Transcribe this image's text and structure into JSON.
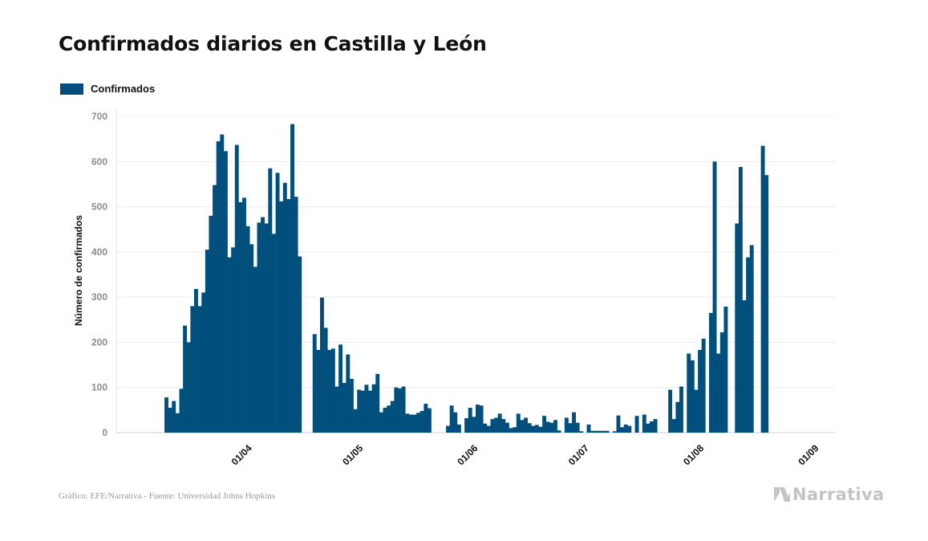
{
  "chart_data": {
    "type": "bar",
    "title": "Confirmados diarios en Castilla y León",
    "ylabel": "Número de confirmados",
    "xlabel": "",
    "ylim": [
      0,
      700
    ],
    "yticks": [
      0,
      100,
      200,
      300,
      400,
      500,
      600,
      700
    ],
    "x_axis": "date",
    "xticks": [
      "01/04",
      "01/05",
      "01/06",
      "01/07",
      "01/08",
      "01/09"
    ],
    "xtick_dates": [
      "2020-04-01",
      "2020-05-01",
      "2020-06-01",
      "2020-07-01",
      "2020-08-01",
      "2020-09-01"
    ],
    "grid": true,
    "legend_position": "top-left",
    "series": [
      {
        "name": "Confirmados",
        "color": "#004f7c",
        "points": [
          [
            "2020-03-10",
            78
          ],
          [
            "2020-03-11",
            55
          ],
          [
            "2020-03-12",
            70
          ],
          [
            "2020-03-13",
            43
          ],
          [
            "2020-03-14",
            97
          ],
          [
            "2020-03-15",
            237
          ],
          [
            "2020-03-16",
            200
          ],
          [
            "2020-03-17",
            280
          ],
          [
            "2020-03-18",
            318
          ],
          [
            "2020-03-19",
            280
          ],
          [
            "2020-03-20",
            310
          ],
          [
            "2020-03-21",
            405
          ],
          [
            "2020-03-22",
            480
          ],
          [
            "2020-03-23",
            548
          ],
          [
            "2020-03-24",
            645
          ],
          [
            "2020-03-25",
            660
          ],
          [
            "2020-03-26",
            623
          ],
          [
            "2020-03-27",
            388
          ],
          [
            "2020-03-28",
            410
          ],
          [
            "2020-03-29",
            637
          ],
          [
            "2020-03-30",
            510
          ],
          [
            "2020-03-31",
            520
          ],
          [
            "2020-04-01",
            457
          ],
          [
            "2020-04-02",
            417
          ],
          [
            "2020-04-03",
            367
          ],
          [
            "2020-04-04",
            465
          ],
          [
            "2020-04-05",
            477
          ],
          [
            "2020-04-06",
            463
          ],
          [
            "2020-04-07",
            585
          ],
          [
            "2020-04-08",
            440
          ],
          [
            "2020-04-09",
            575
          ],
          [
            "2020-04-10",
            512
          ],
          [
            "2020-04-11",
            553
          ],
          [
            "2020-04-12",
            517
          ],
          [
            "2020-04-13",
            683
          ],
          [
            "2020-04-14",
            522
          ],
          [
            "2020-04-15",
            390
          ],
          [
            "2020-04-19",
            218
          ],
          [
            "2020-04-20",
            183
          ],
          [
            "2020-04-21",
            299
          ],
          [
            "2020-04-22",
            232
          ],
          [
            "2020-04-23",
            183
          ],
          [
            "2020-04-24",
            186
          ],
          [
            "2020-04-25",
            102
          ],
          [
            "2020-04-26",
            195
          ],
          [
            "2020-04-27",
            110
          ],
          [
            "2020-04-28",
            173
          ],
          [
            "2020-04-29",
            119
          ],
          [
            "2020-04-30",
            52
          ],
          [
            "2020-05-01",
            95
          ],
          [
            "2020-05-02",
            93
          ],
          [
            "2020-05-03",
            106
          ],
          [
            "2020-05-04",
            93
          ],
          [
            "2020-05-05",
            107
          ],
          [
            "2020-05-06",
            130
          ],
          [
            "2020-05-07",
            45
          ],
          [
            "2020-05-08",
            55
          ],
          [
            "2020-05-09",
            60
          ],
          [
            "2020-05-10",
            70
          ],
          [
            "2020-05-11",
            100
          ],
          [
            "2020-05-12",
            98
          ],
          [
            "2020-05-13",
            102
          ],
          [
            "2020-05-14",
            42
          ],
          [
            "2020-05-15",
            40
          ],
          [
            "2020-05-16",
            40
          ],
          [
            "2020-05-17",
            44
          ],
          [
            "2020-05-18",
            48
          ],
          [
            "2020-05-19",
            64
          ],
          [
            "2020-05-20",
            54
          ],
          [
            "2020-05-25",
            15
          ],
          [
            "2020-05-26",
            60
          ],
          [
            "2020-05-27",
            45
          ],
          [
            "2020-05-28",
            18
          ],
          [
            "2020-05-30",
            32
          ],
          [
            "2020-05-31",
            55
          ],
          [
            "2020-06-01",
            35
          ],
          [
            "2020-06-02",
            62
          ],
          [
            "2020-06-03",
            60
          ],
          [
            "2020-06-04",
            20
          ],
          [
            "2020-06-05",
            15
          ],
          [
            "2020-06-06",
            30
          ],
          [
            "2020-06-07",
            33
          ],
          [
            "2020-06-08",
            42
          ],
          [
            "2020-06-09",
            30
          ],
          [
            "2020-06-10",
            22
          ],
          [
            "2020-06-11",
            10
          ],
          [
            "2020-06-12",
            12
          ],
          [
            "2020-06-13",
            42
          ],
          [
            "2020-06-14",
            28
          ],
          [
            "2020-06-15",
            33
          ],
          [
            "2020-06-16",
            21
          ],
          [
            "2020-06-17",
            15
          ],
          [
            "2020-06-18",
            17
          ],
          [
            "2020-06-19",
            13
          ],
          [
            "2020-06-20",
            37
          ],
          [
            "2020-06-21",
            24
          ],
          [
            "2020-06-22",
            22
          ],
          [
            "2020-06-23",
            28
          ],
          [
            "2020-06-24",
            5
          ],
          [
            "2020-06-26",
            33
          ],
          [
            "2020-06-27",
            21
          ],
          [
            "2020-06-28",
            45
          ],
          [
            "2020-06-29",
            22
          ],
          [
            "2020-06-30",
            3
          ],
          [
            "2020-07-02",
            18
          ],
          [
            "2020-07-03",
            4
          ],
          [
            "2020-07-04",
            4
          ],
          [
            "2020-07-05",
            4
          ],
          [
            "2020-07-06",
            4
          ],
          [
            "2020-07-07",
            4
          ],
          [
            "2020-07-09",
            3
          ],
          [
            "2020-07-10",
            38
          ],
          [
            "2020-07-11",
            12
          ],
          [
            "2020-07-12",
            18
          ],
          [
            "2020-07-13",
            15
          ],
          [
            "2020-07-15",
            37
          ],
          [
            "2020-07-17",
            40
          ],
          [
            "2020-07-18",
            20
          ],
          [
            "2020-07-19",
            25
          ],
          [
            "2020-07-20",
            30
          ],
          [
            "2020-07-24",
            95
          ],
          [
            "2020-07-25",
            30
          ],
          [
            "2020-07-26",
            68
          ],
          [
            "2020-07-27",
            102
          ],
          [
            "2020-07-29",
            175
          ],
          [
            "2020-07-30",
            160
          ],
          [
            "2020-07-31",
            95
          ],
          [
            "2020-08-01",
            183
          ],
          [
            "2020-08-02",
            208
          ],
          [
            "2020-08-04",
            265
          ],
          [
            "2020-08-05",
            600
          ],
          [
            "2020-08-06",
            175
          ],
          [
            "2020-08-07",
            222
          ],
          [
            "2020-08-08",
            279
          ],
          [
            "2020-08-11",
            463
          ],
          [
            "2020-08-12",
            588
          ],
          [
            "2020-08-13",
            293
          ],
          [
            "2020-08-14",
            388
          ],
          [
            "2020-08-15",
            415
          ],
          [
            "2020-08-18",
            635
          ],
          [
            "2020-08-19",
            570
          ]
        ]
      }
    ]
  },
  "source": "Gráfico: EFE/Narrativa - Fuente: Universidad Johns Hopkins",
  "brand": "Narrativa",
  "brand_icon": "narrativa-logo-icon"
}
